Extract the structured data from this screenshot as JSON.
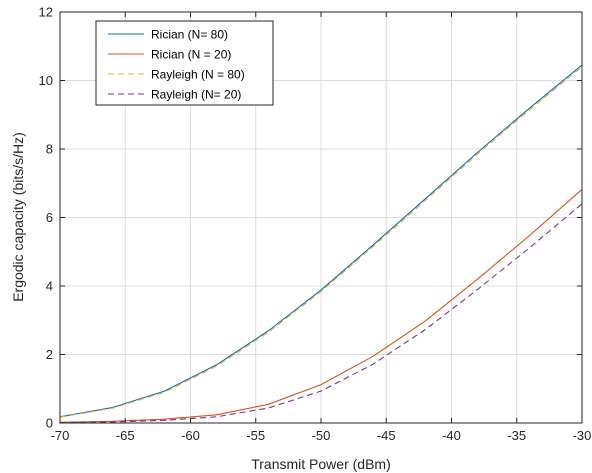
{
  "chart_data": {
    "type": "line",
    "title": "",
    "xlabel": "Transmit Power (dBm)",
    "ylabel": "Ergodic capacity (bits/s/Hz)",
    "xlim": [
      -70,
      -30
    ],
    "ylim": [
      0,
      12
    ],
    "xticks": [
      -70,
      -65,
      -60,
      -55,
      -50,
      -45,
      -40,
      -35,
      -30
    ],
    "yticks": [
      0,
      2,
      4,
      6,
      8,
      10,
      12
    ],
    "xtick_labels": [
      "-70",
      "-65",
      "-60",
      "-55",
      "-50",
      "-45",
      "-40",
      "-35",
      "-30"
    ],
    "ytick_labels": [
      "0",
      "2",
      "4",
      "6",
      "8",
      "10",
      "12"
    ],
    "grid": true,
    "legend_position": "top-left",
    "x": [
      -70,
      -66,
      -62,
      -58,
      -54,
      -50,
      -46,
      -42,
      -38,
      -34,
      -30
    ],
    "series": [
      {
        "name": "Rician (N= 80)",
        "color": "#0072BD",
        "dash": "solid",
        "values": [
          0.18,
          0.45,
          0.93,
          1.7,
          2.7,
          3.88,
          5.2,
          6.55,
          7.9,
          9.2,
          10.45
        ]
      },
      {
        "name": "Rician (N = 20)",
        "color": "#D95319",
        "dash": "solid",
        "values": [
          0.02,
          0.05,
          0.11,
          0.24,
          0.55,
          1.12,
          1.95,
          2.98,
          4.2,
          5.48,
          6.82
        ]
      },
      {
        "name": "Rayleigh (N = 80)",
        "color": "#EDB120",
        "dash": "dashed",
        "values": [
          0.17,
          0.43,
          0.9,
          1.66,
          2.66,
          3.84,
          5.15,
          6.5,
          7.85,
          9.15,
          10.4
        ]
      },
      {
        "name": "Rayleigh (N= 20)",
        "color": "#7E2F8E",
        "dash": "dashed",
        "values": [
          0.01,
          0.03,
          0.08,
          0.18,
          0.44,
          0.93,
          1.72,
          2.73,
          3.9,
          5.12,
          6.4
        ]
      }
    ]
  }
}
